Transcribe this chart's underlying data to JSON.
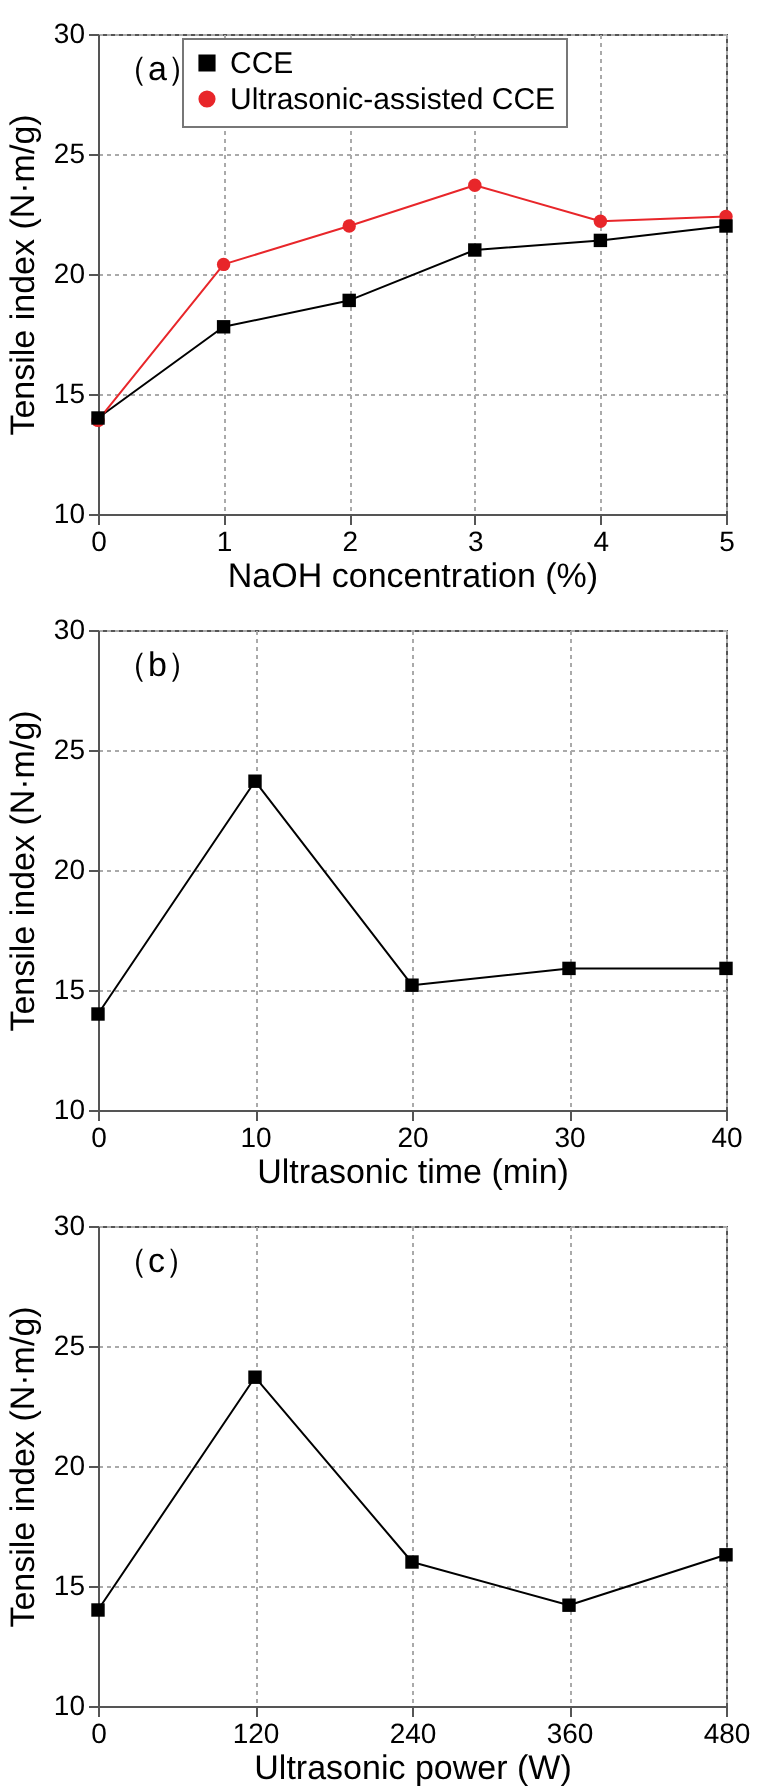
{
  "chart_data": [
    {
      "type": "line",
      "annotations": [
        "（a）"
      ],
      "xlabel": "NaOH concentration (%)",
      "ylabel": "Tensile index (N·m/g)",
      "x": [
        0,
        1,
        2,
        3,
        4,
        5
      ],
      "xlim": [
        0,
        5
      ],
      "xticks": [
        0,
        1,
        2,
        3,
        4,
        5
      ],
      "ylim": [
        10,
        30
      ],
      "yticks": [
        10,
        15,
        20,
        25,
        30
      ],
      "grid": true,
      "legend": "top",
      "line_style": "solid",
      "series": [
        {
          "name": "CCE",
          "color": "#000000",
          "marker": "square",
          "values": [
            14.0,
            17.8,
            18.9,
            21.0,
            21.4,
            22.0
          ]
        },
        {
          "name": "Ultrasonic-assisted CCE",
          "color": "#e8262a",
          "marker": "circle",
          "values": [
            13.9,
            20.4,
            22.0,
            23.7,
            22.2,
            22.4
          ]
        }
      ]
    },
    {
      "type": "line",
      "annotations": [
        "（b）"
      ],
      "xlabel": "Ultrasonic time (min)",
      "ylabel": "Tensile index (N·m/g)",
      "x": [
        0,
        10,
        20,
        30,
        40
      ],
      "xlim": [
        0,
        40
      ],
      "xticks": [
        0,
        10,
        20,
        30,
        40
      ],
      "ylim": [
        10,
        30
      ],
      "yticks": [
        10,
        15,
        20,
        25,
        30
      ],
      "grid": true,
      "line_style": "solid",
      "series": [
        {
          "color": "#000000",
          "marker": "square",
          "values": [
            14.0,
            23.7,
            15.2,
            15.9,
            15.9
          ]
        }
      ]
    },
    {
      "type": "line",
      "annotations": [
        "（c）"
      ],
      "xlabel": "Ultrasonic power (W)",
      "ylabel": "Tensile index (N·m/g)",
      "x": [
        0,
        120,
        240,
        360,
        480
      ],
      "xlim": [
        0,
        480
      ],
      "xticks": [
        0,
        120,
        240,
        360,
        480
      ],
      "ylim": [
        10,
        30
      ],
      "yticks": [
        10,
        15,
        20,
        25,
        30
      ],
      "grid": true,
      "line_style": "solid",
      "series": [
        {
          "color": "#000000",
          "marker": "square",
          "values": [
            14.0,
            23.7,
            16.0,
            14.2,
            16.3
          ]
        }
      ]
    }
  ]
}
